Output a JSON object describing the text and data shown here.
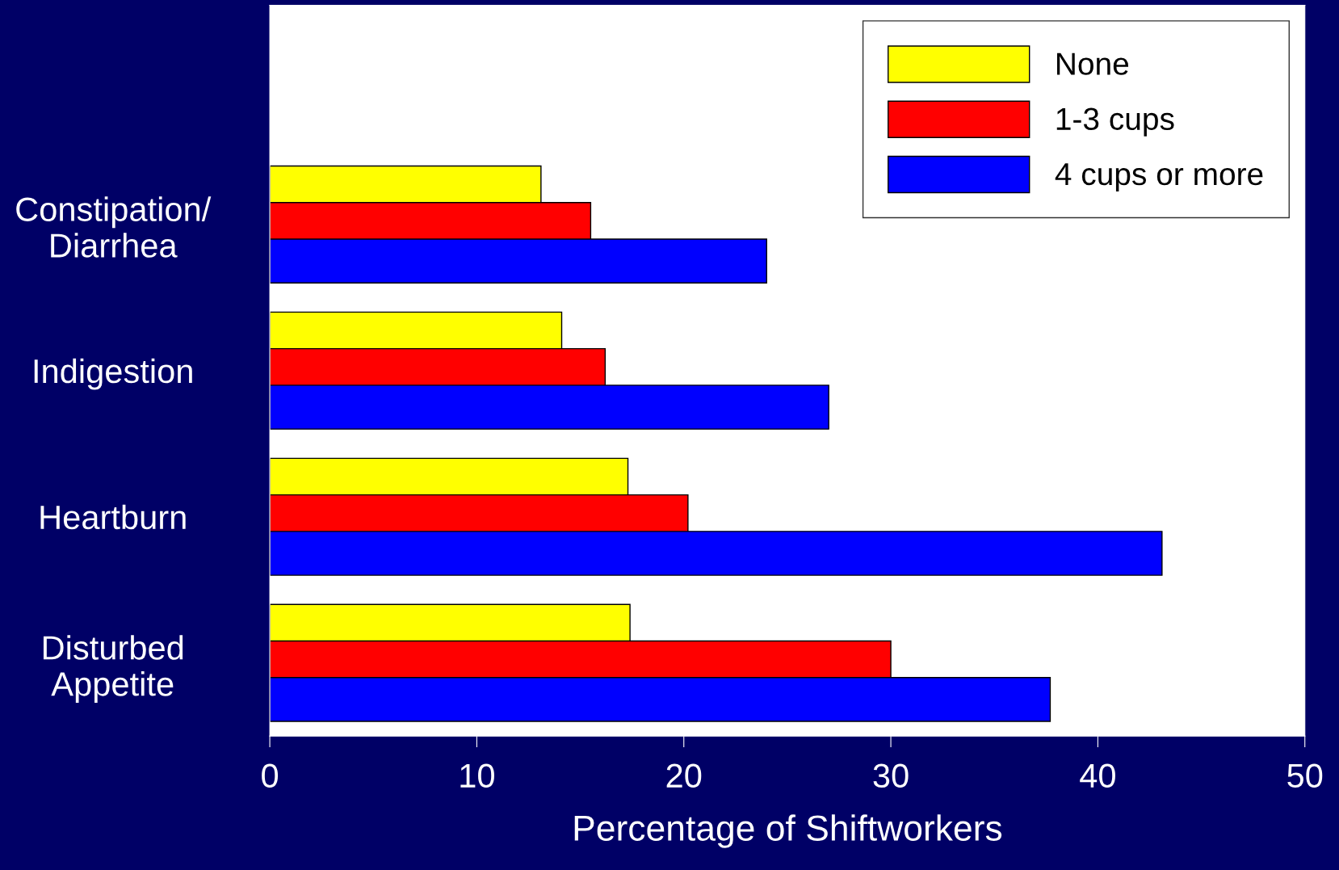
{
  "chart_data": {
    "type": "bar",
    "orientation": "horizontal",
    "xlabel": "Percentage of Shiftworkers",
    "categories": [
      "Constipation/\nDiarrhea",
      "Indigestion",
      "Heartburn",
      "Disturbed\nAppetite"
    ],
    "series": [
      {
        "name": "None",
        "color": "#ffff00",
        "values": [
          13.1,
          14.1,
          17.3,
          17.4
        ]
      },
      {
        "name": "1-3 cups",
        "color": "#ff0000",
        "values": [
          15.5,
          16.2,
          20.2,
          30.0
        ]
      },
      {
        "name": "4 cups or more",
        "color": "#0000ff",
        "values": [
          24.0,
          27.0,
          43.1,
          37.7
        ]
      }
    ],
    "xlim": [
      0,
      50
    ],
    "xticks": [
      0,
      10,
      20,
      30,
      40,
      50
    ],
    "grid": false,
    "legend": "top right"
  }
}
